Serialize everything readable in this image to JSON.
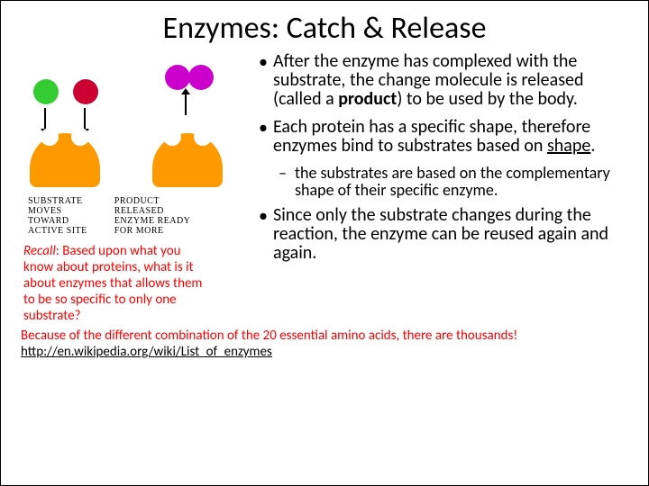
{
  "title": "Enzymes:  Catch & Release",
  "diagram": {
    "caption_left": "SUBSTRATE\nMOVES\nTOWARD\nACTIVE SITE",
    "caption_right": "PRODUCT\nRELEASED\nENZYME READY\nFOR MORE",
    "enzyme_color": "#ff9900",
    "substrate_colors": {
      "green": "#33cc33",
      "red": "#cc0033",
      "product": "#cc00cc"
    }
  },
  "bullets": [
    {
      "parts": [
        {
          "t": "After the enzyme has complexed with the substrate, the change molecule is released (called a "
        },
        {
          "t": "product",
          "bold": true
        },
        {
          "t": ") to be used by the body."
        }
      ]
    },
    {
      "parts": [
        {
          "t": "Each protein has a specific shape, therefore enzymes bind to substrates based on "
        },
        {
          "t": "shape",
          "underline": true
        },
        {
          "t": "."
        }
      ],
      "sub": "the substrates are based on the complementary shape of their specific enzyme."
    },
    {
      "parts": [
        {
          "t": "Since only the substrate changes during the reaction, the enzyme can be reused again and again."
        }
      ]
    }
  ],
  "recall": {
    "label": "Recall",
    "question": ":  Based upon what you know about proteins, what is it about enzymes that allows them to be so specific to only one substrate?"
  },
  "footer": {
    "answer": "Because of the different combination of the 20 essential amino acids, there are thousands!",
    "link_text": "http://en.wikipedia.org/wiki/List_of_enzymes",
    "link_href": "http://en.wikipedia.org/wiki/List_of_enzymes"
  }
}
